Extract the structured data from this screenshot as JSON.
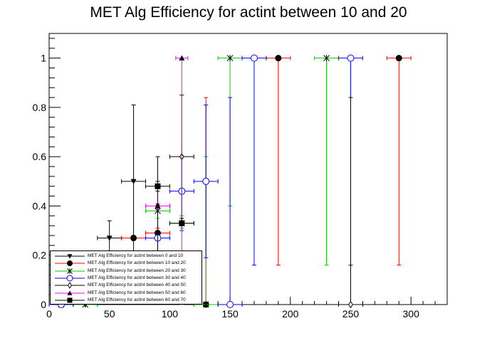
{
  "chart_data": {
    "type": "scatter",
    "title": "MET Alg Efficiency for actint between 10 and 20",
    "xlabel": "",
    "ylabel": "",
    "xlim": [
      0,
      330
    ],
    "ylim": [
      0,
      1.1
    ],
    "x_ticks": [
      "0",
      "50",
      "100",
      "150",
      "200",
      "250",
      "300"
    ],
    "y_ticks": [
      "0",
      "0.2",
      "0.4",
      "0.6",
      "0.8",
      "1"
    ],
    "grid": false,
    "legend_position": "bottom-left",
    "series": [
      {
        "name": "MET Alg Efficiency for actint between 0 and 10",
        "color": "#000000",
        "marker": "triangle-down",
        "points": [
          {
            "x": 10,
            "xerr": 10,
            "y": 0,
            "ylo": 0,
            "yhi": 0.04
          },
          {
            "x": 30,
            "xerr": 10,
            "y": 0,
            "ylo": 0,
            "yhi": 0.03
          },
          {
            "x": 50,
            "xerr": 10,
            "y": 0.27,
            "ylo": 0.2,
            "yhi": 0.34
          },
          {
            "x": 70,
            "xerr": 10,
            "y": 0.5,
            "ylo": 0.18,
            "yhi": 0.81
          }
        ]
      },
      {
        "name": "MET Alg Efficiency for actint between 10 and 20",
        "color": "#ff0000",
        "marker": "circle-filled",
        "points": [
          {
            "x": 10,
            "xerr": 10,
            "y": 0,
            "ylo": 0,
            "yhi": 0.03
          },
          {
            "x": 70,
            "xerr": 10,
            "y": 0.27,
            "ylo": 0.26,
            "yhi": 0.28
          },
          {
            "x": 90,
            "xerr": 10,
            "y": 0.29,
            "ylo": 0.26,
            "yhi": 0.31
          },
          {
            "x": 130,
            "xerr": 10,
            "y": 0,
            "ylo": 0,
            "yhi": 0.84
          },
          {
            "x": 190,
            "xerr": 10,
            "y": 1,
            "ylo": 0.16,
            "yhi": 1
          },
          {
            "x": 290,
            "xerr": 10,
            "y": 1,
            "ylo": 0.16,
            "yhi": 1
          }
        ]
      },
      {
        "name": "MET Alg Efficiency for actint between 20 and 30",
        "color": "#00cc00",
        "marker": "star",
        "points": [
          {
            "x": 10,
            "xerr": 10,
            "y": 0,
            "ylo": 0,
            "yhi": 0.03
          },
          {
            "x": 30,
            "xerr": 10,
            "y": 0,
            "ylo": 0,
            "yhi": 0.03
          },
          {
            "x": 90,
            "xerr": 10,
            "y": 0.38,
            "ylo": 0.35,
            "yhi": 0.41
          },
          {
            "x": 110,
            "xerr": 10,
            "y": 0.33,
            "ylo": 0.31,
            "yhi": 0.36
          },
          {
            "x": 130,
            "xerr": 10,
            "y": 0,
            "ylo": 0,
            "yhi": 0.6
          },
          {
            "x": 150,
            "xerr": 10,
            "y": 1,
            "ylo": 0.4,
            "yhi": 1
          },
          {
            "x": 230,
            "xerr": 10,
            "y": 1,
            "ylo": 0.16,
            "yhi": 1
          }
        ]
      },
      {
        "name": "MET Alg Efficiency for actint between 30 and 40",
        "color": "#0000ff",
        "marker": "circle-open",
        "points": [
          {
            "x": 10,
            "xerr": 10,
            "y": 0,
            "ylo": 0,
            "yhi": 0.03
          },
          {
            "x": 90,
            "xerr": 10,
            "y": 0.27,
            "ylo": 0.16,
            "yhi": 0.4
          },
          {
            "x": 110,
            "xerr": 10,
            "y": 0.46,
            "ylo": 0.3,
            "yhi": 0.6
          },
          {
            "x": 130,
            "xerr": 10,
            "y": 0.5,
            "ylo": 0.19,
            "yhi": 0.81
          },
          {
            "x": 150,
            "xerr": 10,
            "y": 0,
            "ylo": 0,
            "yhi": 0.84
          },
          {
            "x": 170,
            "xerr": 10,
            "y": 1,
            "ylo": 0.16,
            "yhi": 1
          },
          {
            "x": 250,
            "xerr": 10,
            "y": 1,
            "ylo": 0.16,
            "yhi": 1
          }
        ]
      },
      {
        "name": "MET Alg Efficiency for actint between 40 and 50",
        "color": "#000000",
        "marker": "diamond-open",
        "points": [
          {
            "x": 90,
            "xerr": 10,
            "y": 0.4,
            "ylo": 0.2,
            "yhi": 0.6
          },
          {
            "x": 110,
            "xerr": 10,
            "y": 0.6,
            "ylo": 0.32,
            "yhi": 0.85
          },
          {
            "x": 250,
            "xerr": 10,
            "y": 0,
            "ylo": 0,
            "yhi": 0.84
          }
        ]
      },
      {
        "name": "MET Alg Efficiency for actint between 50 and 60",
        "color": "#ff00ff",
        "marker": "triangle-up",
        "points": [
          {
            "x": 90,
            "xerr": 10,
            "y": 0.4,
            "ylo": 0.39,
            "yhi": 0.41
          },
          {
            "x": 110,
            "xerr": 5,
            "y": 1,
            "ylo": 0,
            "yhi": 1
          }
        ]
      },
      {
        "name": "MET Alg Efficiency for actint between 60 and 70",
        "color": "#000000",
        "marker": "square",
        "points": [
          {
            "x": 90,
            "xerr": 10,
            "y": 0.48,
            "ylo": 0.46,
            "yhi": 0.5
          },
          {
            "x": 110,
            "xerr": 10,
            "y": 0.33,
            "ylo": 0.32,
            "yhi": 0.35
          }
        ]
      }
    ]
  }
}
